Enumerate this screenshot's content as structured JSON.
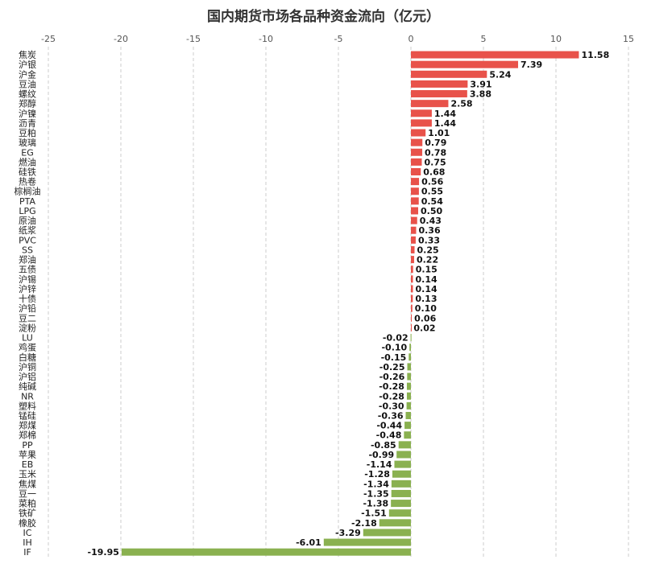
{
  "chart_data": {
    "type": "bar",
    "orientation": "horizontal",
    "title": "国内期货市场各品种资金流向（亿元）",
    "xlabel": "",
    "ylabel": "",
    "xlim": [
      -25,
      15
    ],
    "x_ticks": [
      -25,
      -20,
      -15,
      -10,
      -5,
      0,
      5,
      10,
      15
    ],
    "x_tick_labels": [
      "-25",
      "-20",
      "-15",
      "-10",
      "-5",
      "0",
      "5",
      "10",
      "15"
    ],
    "x_axis_position": "top",
    "grid": true,
    "legend": "none",
    "positive_color": "#e8524a",
    "negative_color": "#8ab150",
    "categories": [
      "焦炭",
      "沪银",
      "沪金",
      "豆油",
      "螺纹",
      "郑醇",
      "沪镍",
      "沥青",
      "豆粕",
      "玻璃",
      "EG",
      "燃油",
      "硅铁",
      "热卷",
      "棕榈油",
      "PTA",
      "LPG",
      "原油",
      "纸浆",
      "PVC",
      "SS",
      "郑油",
      "五债",
      "沪锡",
      "沪锌",
      "十债",
      "沪铅",
      "豆二",
      "淀粉",
      "LU",
      "鸡蛋",
      "白糖",
      "沪铜",
      "沪铝",
      "纯碱",
      "NR",
      "塑料",
      "锰硅",
      "郑煤",
      "郑棉",
      "PP",
      "苹果",
      "EB",
      "玉米",
      "焦煤",
      "豆一",
      "菜粕",
      "铁矿",
      "橡胶",
      "IC",
      "IH",
      "IF"
    ],
    "values": [
      11.58,
      7.39,
      5.24,
      3.91,
      3.88,
      2.58,
      1.44,
      1.44,
      1.01,
      0.79,
      0.78,
      0.75,
      0.68,
      0.56,
      0.55,
      0.54,
      0.5,
      0.43,
      0.36,
      0.33,
      0.25,
      0.22,
      0.15,
      0.14,
      0.14,
      0.13,
      0.1,
      0.06,
      0.02,
      -0.02,
      -0.1,
      -0.15,
      -0.25,
      -0.26,
      -0.28,
      -0.28,
      -0.3,
      -0.36,
      -0.44,
      -0.48,
      -0.85,
      -0.99,
      -1.14,
      -1.28,
      -1.34,
      -1.35,
      -1.38,
      -1.51,
      -2.18,
      -3.29,
      -6.01,
      -19.95
    ],
    "value_labels": [
      "11.58",
      "7.39",
      "5.24",
      "3.91",
      "3.88",
      "2.58",
      "1.44",
      "1.44",
      "1.01",
      "0.79",
      "0.78",
      "0.75",
      "0.68",
      "0.56",
      "0.55",
      "0.54",
      "0.50",
      "0.43",
      "0.36",
      "0.33",
      "0.25",
      "0.22",
      "0.15",
      "0.14",
      "0.14",
      "0.13",
      "0.10",
      "0.06",
      "0.02",
      "-0.02",
      "-0.10",
      "-0.15",
      "-0.25",
      "-0.26",
      "-0.28",
      "-0.28",
      "-0.30",
      "-0.36",
      "-0.44",
      "-0.48",
      "-0.85",
      "-0.99",
      "-1.14",
      "-1.28",
      "-1.34",
      "-1.35",
      "-1.38",
      "-1.51",
      "-2.18",
      "-3.29",
      "-6.01",
      "-19.95"
    ]
  }
}
